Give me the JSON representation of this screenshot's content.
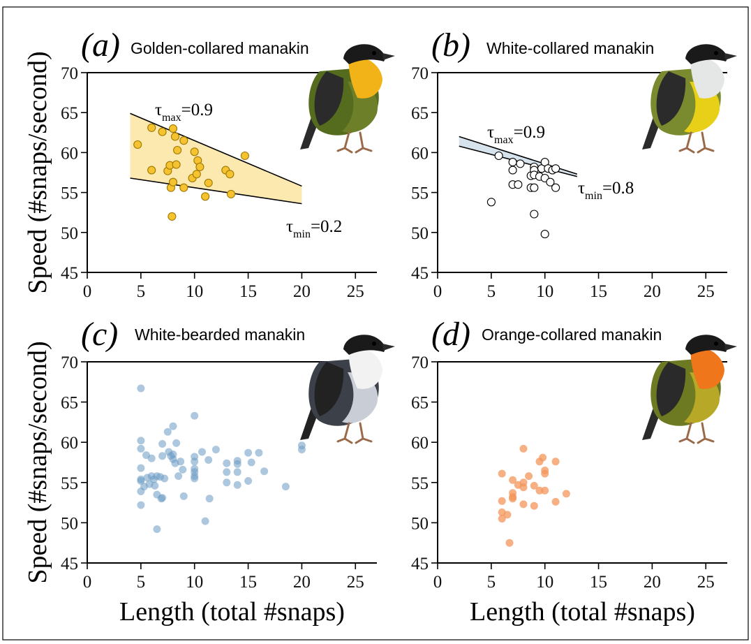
{
  "figure": {
    "y_axis_title": "Speed (#snaps/second)",
    "x_axis_title": "Length (total #snaps)"
  },
  "chart_data": [
    {
      "id": "a",
      "type": "scatter",
      "panel_label": "(a)",
      "title": "Golden-collared manakin",
      "xlabel": "Length (total #snaps)",
      "ylabel": "Speed (#snaps/second)",
      "xlim": [
        0,
        27
      ],
      "ylim": [
        45,
        70
      ],
      "xticks": [
        0,
        5,
        10,
        15,
        20,
        25
      ],
      "yticks": [
        45,
        50,
        55,
        60,
        65,
        70
      ],
      "grid": false,
      "marker": {
        "fill": "#F5C230",
        "stroke": "#A07800",
        "opacity": 1
      },
      "band": {
        "fill": "#FBE9B0",
        "upper": [
          [
            4,
            64.9
          ],
          [
            20,
            55.8
          ]
        ],
        "lower": [
          [
            4,
            56.8
          ],
          [
            20,
            53.6
          ]
        ]
      },
      "annotations": [
        {
          "symbol": "τ",
          "sub": "max",
          "text": "=0.9"
        },
        {
          "symbol": "τ",
          "sub": "min",
          "text": "=0.2"
        }
      ],
      "points": [
        [
          4.7,
          61.0
        ],
        [
          6.0,
          63.1
        ],
        [
          6.0,
          57.8
        ],
        [
          7.0,
          62.6
        ],
        [
          7.5,
          57.7
        ],
        [
          7.7,
          58.4
        ],
        [
          7.8,
          55.6
        ],
        [
          8.0,
          63.0
        ],
        [
          8.0,
          56.3
        ],
        [
          8.2,
          62.0
        ],
        [
          8.3,
          58.5
        ],
        [
          8.4,
          60.3
        ],
        [
          7.9,
          52.0
        ],
        [
          9.0,
          61.5
        ],
        [
          9.0,
          55.6
        ],
        [
          9.8,
          56.8
        ],
        [
          10.0,
          60.1
        ],
        [
          10.2,
          57.3
        ],
        [
          10.3,
          59.0
        ],
        [
          10.5,
          58.2
        ],
        [
          11.0,
          54.5
        ],
        [
          11.3,
          56.2
        ],
        [
          12.9,
          57.8
        ],
        [
          13.3,
          57.3
        ],
        [
          13.4,
          54.8
        ],
        [
          14.7,
          59.6
        ]
      ]
    },
    {
      "id": "b",
      "type": "scatter",
      "panel_label": "(b)",
      "title": "White-collared manakin",
      "xlabel": "Length (total #snaps)",
      "ylabel": "Speed (#snaps/second)",
      "xlim": [
        0,
        27
      ],
      "ylim": [
        45,
        70
      ],
      "xticks": [
        0,
        5,
        10,
        15,
        20,
        25
      ],
      "yticks": [
        45,
        50,
        55,
        60,
        65,
        70
      ],
      "grid": false,
      "marker": {
        "fill": "#FFFFFF",
        "stroke": "#000000",
        "opacity": 1
      },
      "band": {
        "fill": "#D6E2EC",
        "upper": [
          [
            2,
            62.0
          ],
          [
            13,
            57.3
          ]
        ],
        "lower": [
          [
            2,
            60.8
          ],
          [
            13,
            57.0
          ]
        ]
      },
      "annotations": [
        {
          "symbol": "τ",
          "sub": "max",
          "text": "=0.9"
        },
        {
          "symbol": "τ",
          "sub": "min",
          "text": "=0.8"
        }
      ],
      "points": [
        [
          5.0,
          53.8
        ],
        [
          5.7,
          59.6
        ],
        [
          7.0,
          58.8
        ],
        [
          7.0,
          57.8
        ],
        [
          7.0,
          56.0
        ],
        [
          7.5,
          56.0
        ],
        [
          7.7,
          58.6
        ],
        [
          8.7,
          57.1
        ],
        [
          8.7,
          55.6
        ],
        [
          9.0,
          58.2
        ],
        [
          9.0,
          57.8
        ],
        [
          9.0,
          57.2
        ],
        [
          9.0,
          55.6
        ],
        [
          9.0,
          52.3
        ],
        [
          9.5,
          57.0
        ],
        [
          9.7,
          58.0
        ],
        [
          10.0,
          58.8
        ],
        [
          10.0,
          56.8
        ],
        [
          10.0,
          49.8
        ],
        [
          10.3,
          58.0
        ],
        [
          10.5,
          56.3
        ],
        [
          10.7,
          57.8
        ],
        [
          11.0,
          55.6
        ],
        [
          11.0,
          58.0
        ]
      ]
    },
    {
      "id": "c",
      "type": "scatter",
      "panel_label": "(c)",
      "title": "White-bearded manakin",
      "xlabel": "Length (total #snaps)",
      "ylabel": "Speed (#snaps/second)",
      "xlim": [
        0,
        27
      ],
      "ylim": [
        45,
        70
      ],
      "xticks": [
        0,
        5,
        10,
        15,
        20,
        25
      ],
      "yticks": [
        45,
        50,
        55,
        60,
        65,
        70
      ],
      "grid": false,
      "marker": {
        "fill": "#6A9BC3",
        "stroke": "none",
        "opacity": 0.55
      },
      "points": [
        [
          5.0,
          66.7
        ],
        [
          5.0,
          60.2
        ],
        [
          5.0,
          59.2
        ],
        [
          5.0,
          56.8
        ],
        [
          5.0,
          55.4
        ],
        [
          5.0,
          55.2
        ],
        [
          5.0,
          53.9
        ],
        [
          5.0,
          52.2
        ],
        [
          5.3,
          54.5
        ],
        [
          5.5,
          58.4
        ],
        [
          5.6,
          55.6
        ],
        [
          5.8,
          54.8
        ],
        [
          6.0,
          58.0
        ],
        [
          6.0,
          55.8
        ],
        [
          6.2,
          55.4
        ],
        [
          6.3,
          54.6
        ],
        [
          6.5,
          55.8
        ],
        [
          6.5,
          53.5
        ],
        [
          6.5,
          49.2
        ],
        [
          6.8,
          55.7
        ],
        [
          6.9,
          53.0
        ],
        [
          7.0,
          59.8
        ],
        [
          7.0,
          58.3
        ],
        [
          7.0,
          53.1
        ],
        [
          7.2,
          55.5
        ],
        [
          7.5,
          61.3
        ],
        [
          7.6,
          58.8
        ],
        [
          7.8,
          58.3
        ],
        [
          8.0,
          62.0
        ],
        [
          8.0,
          58.5
        ],
        [
          8.0,
          57.9
        ],
        [
          8.2,
          57.4
        ],
        [
          8.3,
          59.9
        ],
        [
          8.5,
          55.8
        ],
        [
          8.7,
          57.6
        ],
        [
          8.9,
          56.6
        ],
        [
          9.0,
          53.3
        ],
        [
          10.0,
          63.3
        ],
        [
          10.0,
          58.2
        ],
        [
          10.0,
          57.6
        ],
        [
          10.0,
          56.7
        ],
        [
          10.0,
          56.3
        ],
        [
          10.0,
          55.8
        ],
        [
          10.0,
          55.5
        ],
        [
          10.7,
          58.8
        ],
        [
          11.0,
          50.2
        ],
        [
          11.3,
          57.8
        ],
        [
          11.4,
          53.0
        ],
        [
          12.0,
          59.1
        ],
        [
          13.0,
          57.4
        ],
        [
          13.0,
          56.3
        ],
        [
          13.0,
          55.0
        ],
        [
          14.0,
          57.7
        ],
        [
          14.0,
          57.3
        ],
        [
          14.0,
          56.3
        ],
        [
          14.0,
          54.7
        ],
        [
          15.0,
          58.7
        ],
        [
          15.0,
          55.2
        ],
        [
          15.3,
          57.5
        ],
        [
          16.0,
          58.7
        ],
        [
          16.5,
          56.4
        ],
        [
          18.5,
          54.5
        ],
        [
          20.0,
          59.6
        ],
        [
          20.0,
          59.1
        ]
      ]
    },
    {
      "id": "d",
      "type": "scatter",
      "panel_label": "(d)",
      "title": "Orange-collared manakin",
      "xlabel": "Length (total #snaps)",
      "ylabel": "Speed (#snaps/second)",
      "xlim": [
        0,
        27
      ],
      "ylim": [
        45,
        70
      ],
      "xticks": [
        0,
        5,
        10,
        15,
        20,
        25
      ],
      "yticks": [
        45,
        50,
        55,
        60,
        65,
        70
      ],
      "grid": false,
      "marker": {
        "fill": "#F3955A",
        "stroke": "none",
        "opacity": 0.75
      },
      "points": [
        [
          6.0,
          56.1
        ],
        [
          6.0,
          52.7
        ],
        [
          6.0,
          51.3
        ],
        [
          6.0,
          50.5
        ],
        [
          6.5,
          51.0
        ],
        [
          6.7,
          47.5
        ],
        [
          7.0,
          55.3
        ],
        [
          7.0,
          53.7
        ],
        [
          7.0,
          53.2
        ],
        [
          7.0,
          53.0
        ],
        [
          7.5,
          54.7
        ],
        [
          8.0,
          59.2
        ],
        [
          8.0,
          55.0
        ],
        [
          8.0,
          54.4
        ],
        [
          8.0,
          52.3
        ],
        [
          8.5,
          55.8
        ],
        [
          9.0,
          54.6
        ],
        [
          9.0,
          52.1
        ],
        [
          9.5,
          57.6
        ],
        [
          9.5,
          54.0
        ],
        [
          9.8,
          58.1
        ],
        [
          10.0,
          56.5
        ],
        [
          10.0,
          56.1
        ],
        [
          10.0,
          54.0
        ],
        [
          11.0,
          57.6
        ],
        [
          11.0,
          52.6
        ],
        [
          12.0,
          53.6
        ]
      ]
    }
  ],
  "birds": [
    {
      "name": "golden-collared",
      "head": "#1A1A1A",
      "throat": "#F2B318",
      "back": "#556B1E",
      "wing": "#2B2B2B",
      "belly": "#6E7F2A"
    },
    {
      "name": "white-collared",
      "head": "#1A1A1A",
      "throat": "#E5E7E6",
      "back": "#7A8A2E",
      "wing": "#2B2B2B",
      "belly": "#E8D018"
    },
    {
      "name": "white-bearded",
      "head": "#1A1A1A",
      "throat": "#F2F2F2",
      "back": "#3C4048",
      "wing": "#222222",
      "belly": "#C9CDD6"
    },
    {
      "name": "orange-collared",
      "head": "#1A1A1A",
      "throat": "#F0761C",
      "back": "#6E7A22",
      "wing": "#2A2A2A",
      "belly": "#B7A828"
    }
  ]
}
